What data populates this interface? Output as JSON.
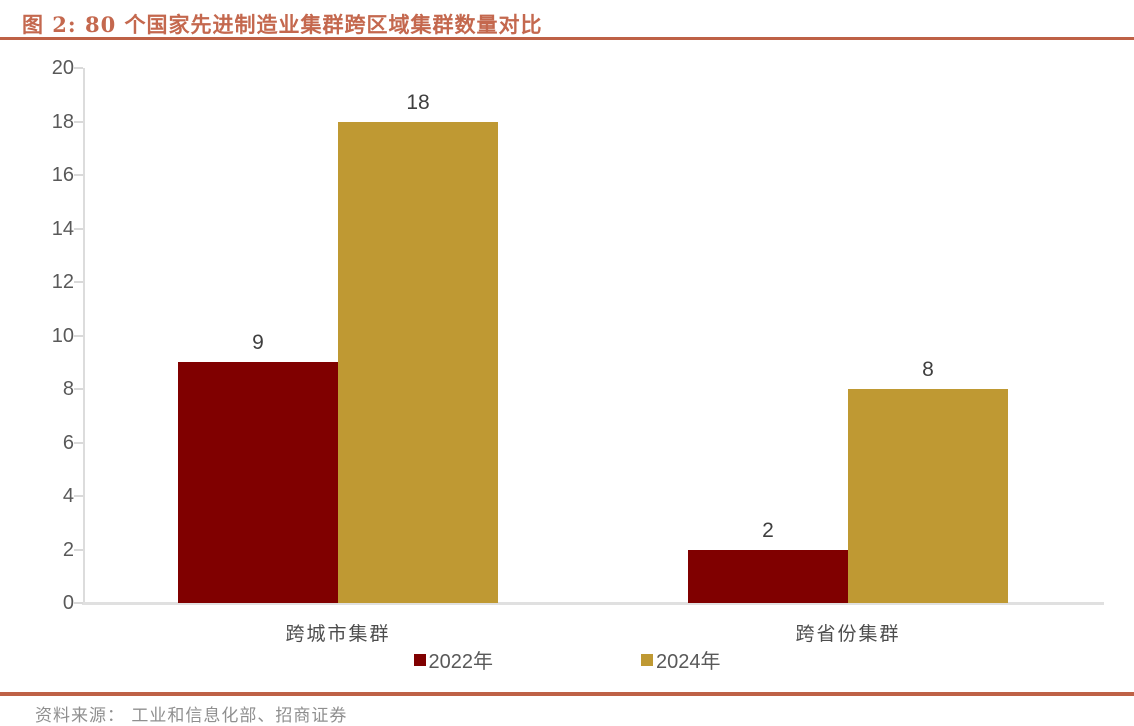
{
  "figure": {
    "title": "图 2:  80 个国家先进制造业集群跨区域集群数量对比",
    "source": "资料来源：  工业和信息化部、招商证券"
  },
  "chart_data": {
    "type": "bar",
    "title": "80 个国家先进制造业集群跨区域集群数量对比",
    "categories": [
      "跨城市集群",
      "跨省份集群"
    ],
    "series": [
      {
        "name": "2022年",
        "color": "#800000",
        "values": [
          9,
          2
        ]
      },
      {
        "name": "2024年",
        "color": "#BF9933",
        "values": [
          18,
          8
        ]
      }
    ],
    "xlabel": "",
    "ylabel": "",
    "ylim": [
      0,
      20
    ],
    "yticks": [
      0,
      2,
      4,
      6,
      8,
      10,
      12,
      14,
      16,
      18,
      20
    ],
    "grid": false,
    "value_labels": true,
    "legend_position": "bottom"
  },
  "colors": {
    "title_text": "#C4684E",
    "rule": "#BE6146",
    "axis_line": "#DCDCDC",
    "tick_label": "#595959",
    "value_label": "#3F3F3F",
    "category_label": "#4D4D4D",
    "source_text": "#8F8F8F"
  }
}
